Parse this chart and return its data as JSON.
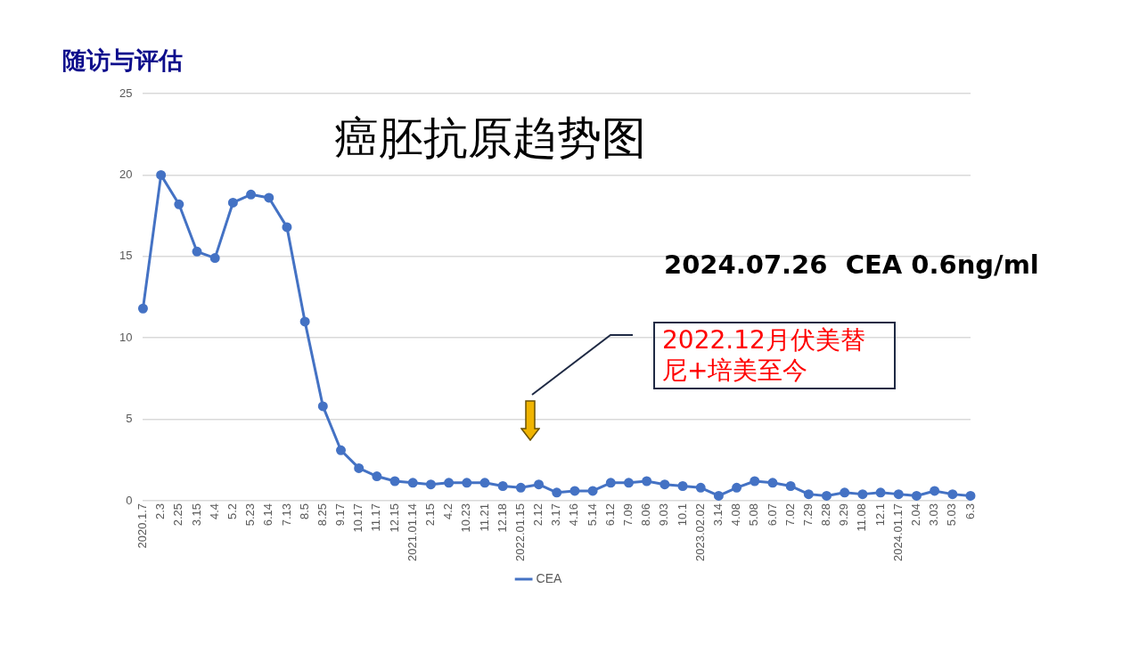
{
  "chart_data": {
    "type": "line",
    "title": "随访与评估",
    "subtitle": "癌胚抗原趋势图",
    "categories": [
      "2020.1.7",
      "2.3",
      "2.25",
      "3.15",
      "4.4",
      "5.2",
      "5.23",
      "6.14",
      "7.13",
      "8.5",
      "8.25",
      "9.17",
      "10.17",
      "11.17",
      "12.15",
      "2021.01.14",
      "2.15",
      "4.2",
      "10.23",
      "11.21",
      "12.18",
      "2022.01.15",
      "2.12",
      "3.17",
      "4.16",
      "5.14",
      "6.12",
      "7.09",
      "8.06",
      "9.03",
      "10.1",
      "2023.02.02",
      "3.14",
      "4.08",
      "5.08",
      "6.07",
      "7.02",
      "7.29",
      "8.28",
      "9.29",
      "11.08",
      "12.1",
      "2024.01.17",
      "2.04",
      "3.03",
      "5.03",
      "6.3"
    ],
    "series": [
      {
        "name": "CEA",
        "color": "#4472c4",
        "values": [
          11.8,
          20,
          18.2,
          15.3,
          14.9,
          18.3,
          18.8,
          18.6,
          16.8,
          11.0,
          5.8,
          3.1,
          2.0,
          1.5,
          1.2,
          1.1,
          1.0,
          1.1,
          1.1,
          1.1,
          0.9,
          0.8,
          1.0,
          0.5,
          0.6,
          0.6,
          1.1,
          1.1,
          1.2,
          1.0,
          0.9,
          0.8,
          0.3,
          0.8,
          1.2,
          1.1,
          0.9,
          0.4,
          0.3,
          0.5,
          0.4,
          0.5,
          0.4,
          0.3,
          0.6,
          0.4,
          0.3
        ]
      }
    ],
    "ylim": [
      0,
      25
    ],
    "yticks": [
      0,
      5,
      10,
      15,
      20,
      25
    ],
    "grid": "y",
    "legend": "bottom",
    "marker": "circle",
    "line_style": "solid",
    "annotations": [
      "2024.07.26  CEA 0.6ng/ml",
      "2022.12月伏美替尼+培美至今"
    ]
  }
}
